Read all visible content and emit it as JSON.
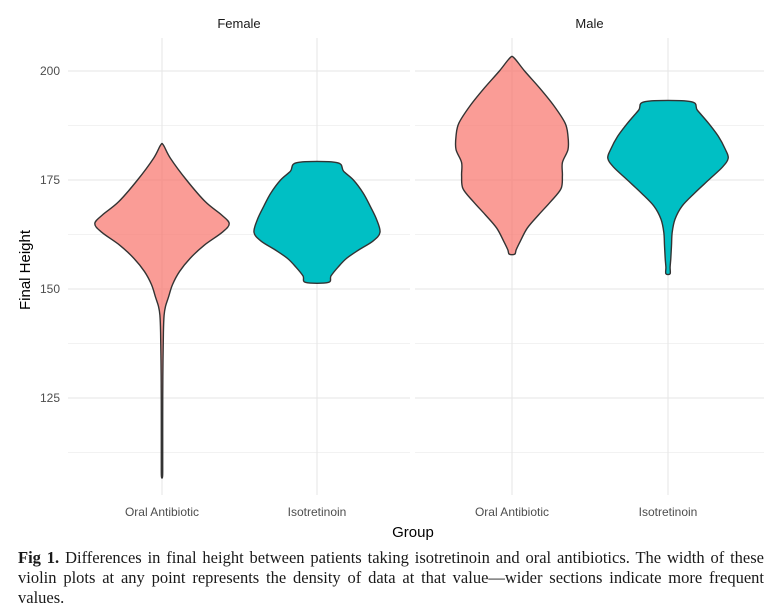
{
  "chart_data": {
    "type": "violin",
    "xlabel": "Group",
    "ylabel": "Final Height",
    "ylim": [
      103,
      210
    ],
    "yticks": [
      125,
      150,
      175,
      200
    ],
    "categories": [
      "Oral Antibiotic",
      "Isotretinoin"
    ],
    "colors": {
      "Oral Antibiotic": "#F8766D",
      "Isotretinoin": "#00BFC4"
    },
    "panels": [
      {
        "name": "Female",
        "violins": [
          {
            "group": "Oral Antibiotic",
            "min": 107,
            "max": 183,
            "profile": [
              [
                183,
                0.02
              ],
              [
                180,
                0.12
              ],
              [
                175,
                0.35
              ],
              [
                170,
                0.62
              ],
              [
                167,
                0.85
              ],
              [
                165,
                0.96
              ],
              [
                163,
                0.86
              ],
              [
                160,
                0.6
              ],
              [
                157,
                0.4
              ],
              [
                154,
                0.25
              ],
              [
                151,
                0.15
              ],
              [
                148,
                0.09
              ],
              [
                146,
                0.05
              ],
              [
                144,
                0.03
              ],
              [
                140,
                0.02
              ],
              [
                130,
                0.012
              ],
              [
                120,
                0.01
              ],
              [
                110,
                0.01
              ],
              [
                107,
                0.008
              ]
            ]
          },
          {
            "group": "Isotretinoin",
            "min": 151.5,
            "max": 179,
            "profile": [
              [
                179,
                0.28
              ],
              [
                177,
                0.38
              ],
              [
                175,
                0.52
              ],
              [
                172,
                0.66
              ],
              [
                169,
                0.76
              ],
              [
                166,
                0.85
              ],
              [
                163,
                0.9
              ],
              [
                161,
                0.8
              ],
              [
                159,
                0.6
              ],
              [
                157,
                0.42
              ],
              [
                155,
                0.3
              ],
              [
                153,
                0.2
              ],
              [
                151.5,
                0.16
              ]
            ]
          }
        ]
      },
      {
        "name": "Male",
        "violins": [
          {
            "group": "Oral Antibiotic",
            "min": 158,
            "max": 203,
            "profile": [
              [
                203,
                0.03
              ],
              [
                200,
                0.18
              ],
              [
                196,
                0.4
              ],
              [
                192,
                0.6
              ],
              [
                188,
                0.76
              ],
              [
                185,
                0.8
              ],
              [
                182,
                0.8
              ],
              [
                179,
                0.72
              ],
              [
                176,
                0.72
              ],
              [
                173,
                0.7
              ],
              [
                170,
                0.55
              ],
              [
                167,
                0.38
              ],
              [
                164,
                0.22
              ],
              [
                161,
                0.12
              ],
              [
                159,
                0.06
              ],
              [
                158,
                0.04
              ]
            ]
          },
          {
            "group": "Isotretinoin",
            "min": 153.5,
            "max": 193,
            "profile": [
              [
                193,
                0.32
              ],
              [
                191,
                0.42
              ],
              [
                188,
                0.58
              ],
              [
                185,
                0.72
              ],
              [
                182,
                0.82
              ],
              [
                180,
                0.86
              ],
              [
                178,
                0.78
              ],
              [
                175,
                0.58
              ],
              [
                172,
                0.38
              ],
              [
                169,
                0.2
              ],
              [
                166,
                0.1
              ],
              [
                163,
                0.06
              ],
              [
                160,
                0.05
              ],
              [
                157,
                0.04
              ],
              [
                155,
                0.03
              ],
              [
                153.5,
                0.03
              ]
            ]
          }
        ]
      }
    ]
  },
  "caption": {
    "label": "Fig 1.",
    "text": "Differences in final height between patients taking isotretinoin and oral antibiotics. The width of these violin plots at any point represents the density of data at that value—wider sections indicate more frequent values."
  }
}
